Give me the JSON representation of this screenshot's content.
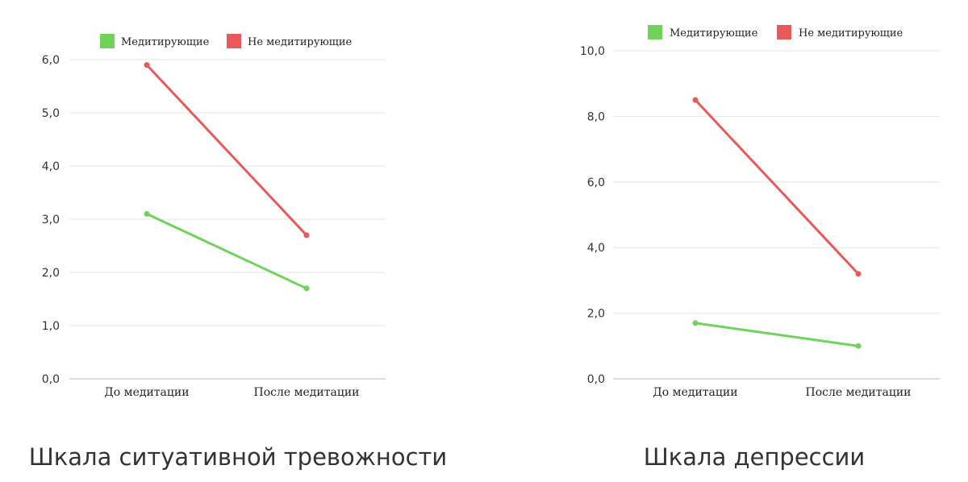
{
  "chart_data": [
    {
      "type": "line",
      "title": "",
      "caption": "Шкала ситуативной тревожности",
      "categories": [
        "До медитации",
        "После медитации"
      ],
      "ylim": [
        0,
        6
      ],
      "yticks": [
        "0,0",
        "1,0",
        "2,0",
        "3,0",
        "4,0",
        "5,0",
        "6,0"
      ],
      "grid": true,
      "legend_position": "top",
      "series": [
        {
          "name": "Медитирующие",
          "color": "#6fd35a",
          "values": [
            3.1,
            1.7
          ]
        },
        {
          "name": "Не медитирующие",
          "color": "#e85a5a",
          "values": [
            5.9,
            2.7
          ]
        }
      ]
    },
    {
      "type": "line",
      "title": "",
      "caption": "Шкала депрессии",
      "categories": [
        "До медитации",
        "После медитации"
      ],
      "ylim": [
        0,
        10
      ],
      "yticks": [
        "0,0",
        "2,0",
        "4,0",
        "6,0",
        "8,0",
        "10,0"
      ],
      "grid": true,
      "legend_position": "top",
      "series": [
        {
          "name": "Медитирующие",
          "color": "#6fd35a",
          "values": [
            1.7,
            1.0
          ]
        },
        {
          "name": "Не медитирующие",
          "color": "#e85a5a",
          "values": [
            8.5,
            3.2
          ]
        }
      ]
    }
  ]
}
